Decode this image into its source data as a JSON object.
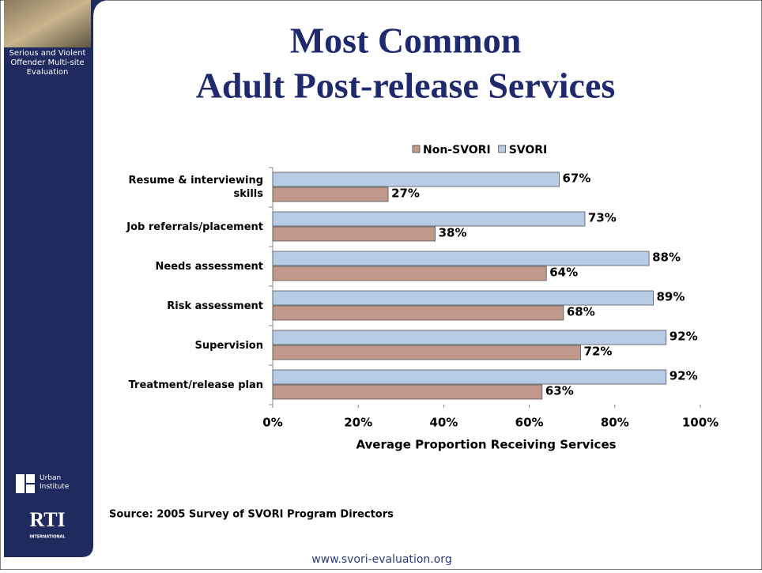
{
  "sidebar": {
    "project": "Serious and Violent Offender Multi-site Evaluation",
    "logo_1": "Urban Institute",
    "logo_2": "RTI",
    "logo_2_sub": "INTERNATIONAL"
  },
  "chart_data": {
    "type": "bar",
    "orientation": "horizontal",
    "title": [
      "Most Common",
      "Adult Post-release Services"
    ],
    "x_label": "Average Proportion Receiving Services",
    "categories": [
      "Resume & interviewing skills",
      "Job referrals/placement",
      "Needs assessment",
      "Risk assessment",
      "Supervision",
      "Treatment/release plan"
    ],
    "series": [
      {
        "name": "Non-SVORI",
        "color": "#c0998c",
        "values": [
          27,
          38,
          64,
          68,
          72,
          63
        ],
        "value_labels": [
          "27%",
          "38%",
          "64%",
          "68%",
          "72%",
          "63%"
        ]
      },
      {
        "name": "SVORI",
        "color": "#b7cde6",
        "values": [
          67,
          73,
          88,
          89,
          92,
          92
        ],
        "value_labels": [
          "67%",
          "73%",
          "88%",
          "89%",
          "92%",
          "92%"
        ]
      }
    ],
    "xlim": [
      0,
      100
    ],
    "xticks": [
      {
        "value": 0,
        "label": "0%"
      },
      {
        "value": 20,
        "label": "20%"
      },
      {
        "value": 40,
        "label": "40%"
      },
      {
        "value": 60,
        "label": "60%"
      },
      {
        "value": 80,
        "label": "80%"
      },
      {
        "value": 100,
        "label": "100%"
      }
    ],
    "legend": "top"
  },
  "source": "Source: 2005 Survey of SVORI Program Directors",
  "footer": "www.svori-evaluation.org"
}
